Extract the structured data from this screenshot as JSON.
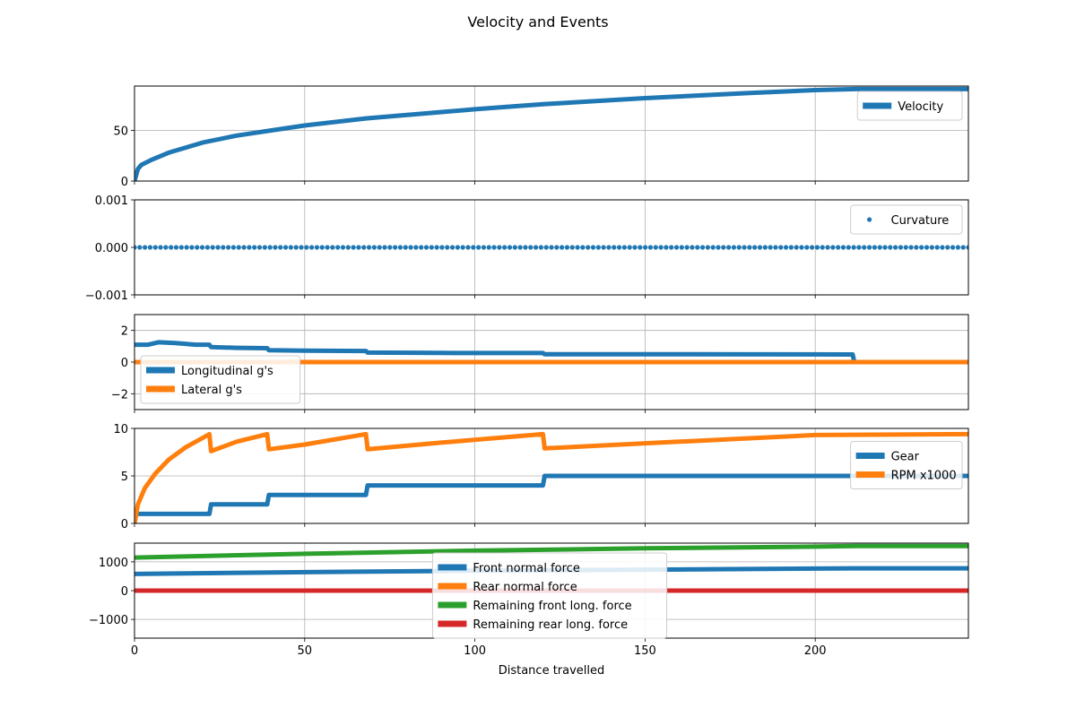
{
  "figure": {
    "title": "Velocity and Events"
  },
  "colors": {
    "blue": "#1f77b4",
    "orange": "#ff7f0e",
    "green": "#2ca02c",
    "red": "#d62728",
    "grid": "#b0b0b0"
  },
  "chart_data": [
    {
      "id": "velocity",
      "type": "line",
      "xlim": [
        0,
        245
      ],
      "ylim": [
        0,
        94
      ],
      "xticks": [
        0,
        50,
        100,
        150,
        200
      ],
      "show_xticklabels": false,
      "yticks": [
        0,
        50
      ],
      "yticklabels": [
        "0",
        "50"
      ],
      "grid": true,
      "legend": "upper right",
      "series": [
        {
          "name": "Velocity",
          "color": "#1f77b4",
          "style": "line",
          "x": [
            0,
            1,
            2,
            5,
            10,
            20,
            30,
            40,
            50,
            68,
            100,
            120,
            150,
            180,
            200,
            212,
            245
          ],
          "y": [
            0,
            12,
            16,
            21,
            28,
            38,
            45,
            50,
            55,
            62,
            71,
            76,
            82,
            87,
            90,
            91,
            91
          ]
        }
      ]
    },
    {
      "id": "curvature",
      "type": "scatter",
      "xlim": [
        0,
        245
      ],
      "ylim": [
        -0.001,
        0.001
      ],
      "xticks": [
        0,
        50,
        100,
        150,
        200
      ],
      "show_xticklabels": false,
      "yticks": [
        -0.001,
        0,
        0.001
      ],
      "yticklabels": [
        "−0.001",
        "0.000",
        "0.001"
      ],
      "grid": true,
      "legend": "upper right",
      "series": [
        {
          "name": "Curvature",
          "color": "#1f77b4",
          "style": "dots",
          "x": [
            0,
            245
          ],
          "y": [
            0,
            0
          ]
        }
      ]
    },
    {
      "id": "gforces",
      "type": "line",
      "xlim": [
        0,
        245
      ],
      "ylim": [
        -3,
        3
      ],
      "xticks": [
        0,
        50,
        100,
        150,
        200
      ],
      "show_xticklabels": false,
      "yticks": [
        -2,
        0,
        2
      ],
      "yticklabels": [
        "−2",
        "0",
        "2"
      ],
      "grid": true,
      "legend": "lower left",
      "series": [
        {
          "name": "Longitudinal g's",
          "color": "#1f77b4",
          "style": "line",
          "x": [
            0,
            4,
            7,
            12,
            18,
            22,
            22.5,
            30,
            39,
            39.5,
            50,
            68,
            68.5,
            90,
            120,
            120.5,
            160,
            211,
            211.5,
            245
          ],
          "y": [
            1.1,
            1.1,
            1.25,
            1.2,
            1.1,
            1.1,
            0.95,
            0.9,
            0.88,
            0.75,
            0.72,
            0.7,
            0.6,
            0.58,
            0.57,
            0.5,
            0.5,
            0.48,
            0,
            0
          ]
        },
        {
          "name": "Lateral g's",
          "color": "#ff7f0e",
          "style": "line",
          "x": [
            0,
            245
          ],
          "y": [
            0,
            0
          ]
        }
      ]
    },
    {
      "id": "gear_rpm",
      "type": "line",
      "xlim": [
        0,
        245
      ],
      "ylim": [
        0,
        10
      ],
      "xticks": [
        0,
        50,
        100,
        150,
        200
      ],
      "show_xticklabels": false,
      "yticks": [
        0,
        5,
        10
      ],
      "yticklabels": [
        "0",
        "5",
        "10"
      ],
      "grid": true,
      "legend": "right",
      "series": [
        {
          "name": "Gear",
          "color": "#1f77b4",
          "style": "line",
          "x": [
            0,
            0.5,
            22,
            22.5,
            39,
            39.5,
            68,
            68.5,
            120,
            120.5,
            245
          ],
          "y": [
            0,
            1,
            1,
            2,
            2,
            3,
            3,
            4,
            4,
            5,
            5
          ]
        },
        {
          "name": "RPM x1000",
          "color": "#ff7f0e",
          "style": "line",
          "x": [
            0,
            1,
            3,
            6,
            10,
            15,
            22,
            22.5,
            30,
            39,
            39.5,
            50,
            68,
            68.5,
            90,
            120,
            120.5,
            160,
            200,
            245
          ],
          "y": [
            0,
            2,
            3.7,
            5.2,
            6.7,
            8,
            9.4,
            7.6,
            8.6,
            9.4,
            7.8,
            8.3,
            9.4,
            7.8,
            8.5,
            9.4,
            7.9,
            8.6,
            9.3,
            9.4
          ]
        }
      ]
    },
    {
      "id": "forces",
      "type": "line",
      "xlim": [
        0,
        245
      ],
      "ylim": [
        -1650,
        1650
      ],
      "xticks": [
        0,
        50,
        100,
        150,
        200
      ],
      "show_xticklabels": true,
      "xticklabels": [
        "0",
        "50",
        "100",
        "150",
        "200"
      ],
      "yticks": [
        -1000,
        0,
        1000
      ],
      "yticklabels": [
        "−1000",
        "0",
        "1000"
      ],
      "xlabel": "Distance travelled",
      "grid": true,
      "legend": "lower center",
      "series": [
        {
          "name": "Front normal force",
          "color": "#1f77b4",
          "style": "line",
          "x": [
            0,
            50,
            100,
            150,
            200,
            212,
            245
          ],
          "y": [
            580,
            640,
            690,
            730,
            765,
            775,
            775
          ]
        },
        {
          "name": "Rear normal force",
          "color": "#ff7f0e",
          "style": "line",
          "x": [
            0,
            245
          ],
          "y": [
            0,
            0
          ]
        },
        {
          "name": "Remaining front long. force",
          "color": "#2ca02c",
          "style": "line",
          "x": [
            0,
            50,
            100,
            150,
            200,
            212,
            245
          ],
          "y": [
            1150,
            1280,
            1390,
            1470,
            1530,
            1550,
            1550
          ]
        },
        {
          "name": "Remaining rear long. force",
          "color": "#d62728",
          "style": "line",
          "x": [
            0,
            245
          ],
          "y": [
            0,
            0
          ]
        }
      ]
    }
  ]
}
